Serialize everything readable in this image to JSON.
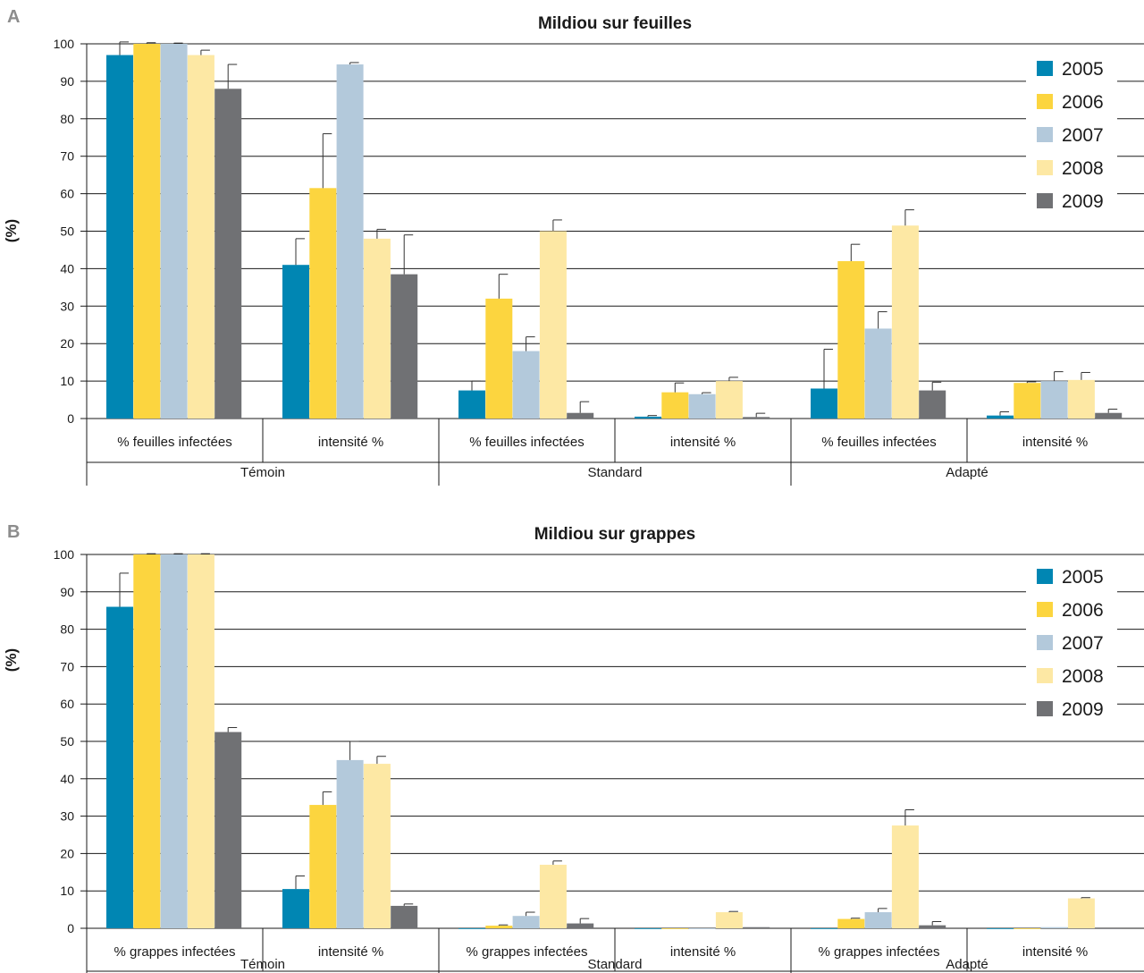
{
  "colors": {
    "2005": "#0086b3",
    "2006": "#fcd53f",
    "2007": "#b3c9db",
    "2008": "#fde8a4",
    "2009": "#707174",
    "gridline": "#1a1a1a",
    "errorbar": "#333333"
  },
  "chart_data": [
    {
      "type": "bar",
      "panel": "A",
      "title": "Mildiou sur feuilles",
      "ylabel": "(%)",
      "xlabel": "",
      "ylim": [
        0,
        100
      ],
      "yticks": [
        "0",
        "10",
        "20",
        "30",
        "40",
        "50",
        "60",
        "70",
        "80",
        "90",
        "100"
      ],
      "grid": true,
      "legend_position": "top-right",
      "groups": [
        "Témoin",
        "Standard",
        "Adapté"
      ],
      "categories": [
        "% feuilles infectées",
        "intensité %",
        "% feuilles infectées",
        "intensité %",
        "% feuilles infectées",
        "intensité %"
      ],
      "series": [
        {
          "name": "2005",
          "values": [
            97,
            41,
            7.5,
            0.5,
            8,
            0.8
          ],
          "errors": [
            3.5,
            7,
            2.5,
            0.3,
            10.5,
            1
          ]
        },
        {
          "name": "2006",
          "values": [
            100,
            61.5,
            32,
            7,
            42,
            9.5
          ],
          "errors": [
            0.3,
            14.5,
            6.5,
            2.5,
            4.5,
            0.3
          ]
        },
        {
          "name": "2007",
          "values": [
            100,
            94.5,
            18,
            6.5,
            24,
            10
          ],
          "errors": [
            0.2,
            0.5,
            3.8,
            0.4,
            4.5,
            2.5
          ]
        },
        {
          "name": "2008",
          "values": [
            97,
            48,
            50,
            10,
            51.5,
            10.3
          ],
          "errors": [
            1.3,
            2.5,
            3,
            1,
            4.2,
            2
          ]
        },
        {
          "name": "2009",
          "values": [
            88,
            38.5,
            1.5,
            0.4,
            7.5,
            1.5
          ],
          "errors": [
            6.5,
            10.5,
            3,
            1,
            2.2,
            1
          ]
        }
      ]
    },
    {
      "type": "bar",
      "panel": "B",
      "title": "Mildiou sur grappes",
      "ylabel": "(%)",
      "xlabel": "",
      "ylim": [
        0,
        100
      ],
      "yticks": [
        "0",
        "10",
        "20",
        "30",
        "40",
        "50",
        "60",
        "70",
        "80",
        "90",
        "100"
      ],
      "grid": true,
      "legend_position": "top-right",
      "groups": [
        "Témoin",
        "Standard",
        "Adapté"
      ],
      "categories": [
        "% grappes infectées",
        "intensité %",
        "% grappes infectées",
        "intensité %",
        "% grappes infectées",
        "intensité %"
      ],
      "series": [
        {
          "name": "2005",
          "values": [
            86,
            10.5,
            0,
            0,
            0,
            0
          ],
          "errors": [
            9,
            3.5,
            0,
            0,
            0,
            0
          ]
        },
        {
          "name": "2006",
          "values": [
            100,
            33,
            0.7,
            0,
            2.5,
            0
          ],
          "errors": [
            0.2,
            3.5,
            0.2,
            0,
            0.2,
            0
          ]
        },
        {
          "name": "2007",
          "values": [
            100,
            45,
            3.3,
            0,
            4.3,
            0.3
          ],
          "errors": [
            0.2,
            5,
            1,
            0,
            1,
            0
          ]
        },
        {
          "name": "2008",
          "values": [
            100,
            44,
            17,
            4.3,
            27.5,
            8
          ],
          "errors": [
            0.2,
            2,
            1,
            0.2,
            4.2,
            0.2
          ]
        },
        {
          "name": "2009",
          "values": [
            52.5,
            6,
            1.3,
            0.3,
            0.8,
            0
          ],
          "errors": [
            1.2,
            0.5,
            1.3,
            0,
            1,
            0
          ]
        }
      ]
    }
  ]
}
